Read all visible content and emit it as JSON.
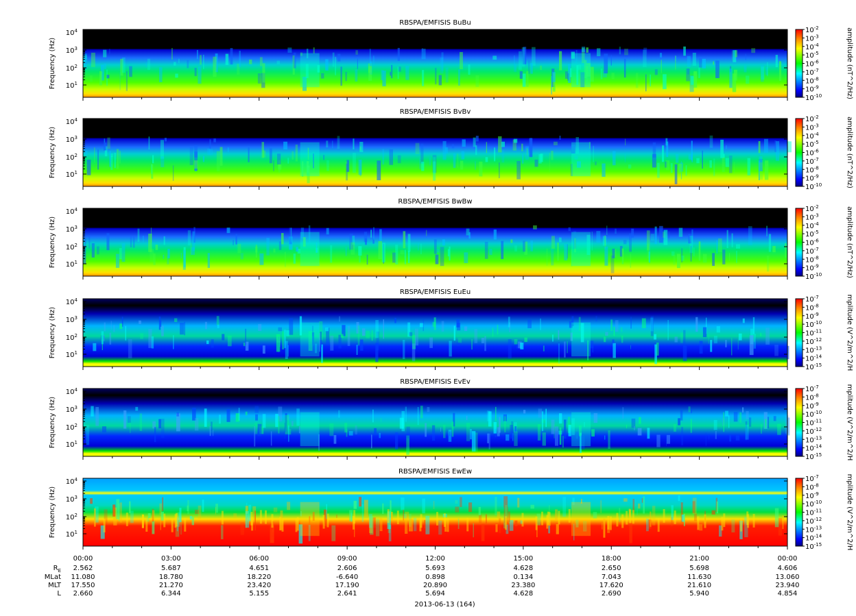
{
  "chart_data": [
    {
      "type": "heatmap",
      "title": "RBSPA/EMFISIS  BuBu",
      "ylabel": "Frequency (Hz)",
      "yscale": "log",
      "y_ticks": [
        "10",
        "10",
        "10",
        "10"
      ],
      "y_tick_exps": [
        "1",
        "2",
        "3",
        "4"
      ],
      "colorbar_label": "amplitude (nT^2/Hz)",
      "colorbar_range": [
        -10,
        -2
      ],
      "colorbar_ticks": [
        "10",
        "10",
        "10",
        "10",
        "10",
        "10",
        "10",
        "10",
        "10"
      ],
      "colorbar_tick_exps": [
        "-2",
        "-3",
        "-4",
        "-5",
        "-6",
        "-7",
        "-8",
        "-9",
        "-10"
      ],
      "variant": "B"
    },
    {
      "type": "heatmap",
      "title": "RBSPA/EMFISIS  BvBv",
      "ylabel": "Frequency (Hz)",
      "yscale": "log",
      "y_ticks": [
        "10",
        "10",
        "10",
        "10"
      ],
      "y_tick_exps": [
        "1",
        "2",
        "3",
        "4"
      ],
      "colorbar_label": "amplitude (nT^2/Hz)",
      "colorbar_range": [
        -10,
        -2
      ],
      "colorbar_ticks": [
        "10",
        "10",
        "10",
        "10",
        "10",
        "10",
        "10",
        "10",
        "10"
      ],
      "colorbar_tick_exps": [
        "-2",
        "-3",
        "-4",
        "-5",
        "-6",
        "-7",
        "-8",
        "-9",
        "-10"
      ],
      "variant": "B"
    },
    {
      "type": "heatmap",
      "title": "RBSPA/EMFISIS  BwBw",
      "ylabel": "Frequency (Hz)",
      "yscale": "log",
      "y_ticks": [
        "10",
        "10",
        "10",
        "10"
      ],
      "y_tick_exps": [
        "1",
        "2",
        "3",
        "4"
      ],
      "colorbar_label": "amplitude (nT^2/Hz)",
      "colorbar_range": [
        -10,
        -2
      ],
      "colorbar_ticks": [
        "10",
        "10",
        "10",
        "10",
        "10",
        "10",
        "10",
        "10",
        "10"
      ],
      "colorbar_tick_exps": [
        "-2",
        "-3",
        "-4",
        "-5",
        "-6",
        "-7",
        "-8",
        "-9",
        "-10"
      ],
      "variant": "B"
    },
    {
      "type": "heatmap",
      "title": "RBSPA/EMFISIS  EuEu",
      "ylabel": "Frequency (Hz)",
      "yscale": "log",
      "y_ticks": [
        "10",
        "10",
        "10",
        "10"
      ],
      "y_tick_exps": [
        "1",
        "2",
        "3",
        "4"
      ],
      "colorbar_label": "mplitude (V^2/m^2/H",
      "colorbar_range": [
        -15,
        -7
      ],
      "colorbar_ticks": [
        "10",
        "10",
        "10",
        "10",
        "10",
        "10",
        "10",
        "10",
        "10"
      ],
      "colorbar_tick_exps": [
        "-7",
        "-8",
        "-9",
        "-10",
        "-11",
        "-12",
        "-13",
        "-14",
        "-15"
      ],
      "variant": "E"
    },
    {
      "type": "heatmap",
      "title": "RBSPA/EMFISIS  EvEv",
      "ylabel": "Frequency (Hz)",
      "yscale": "log",
      "y_ticks": [
        "10",
        "10",
        "10",
        "10"
      ],
      "y_tick_exps": [
        "1",
        "2",
        "3",
        "4"
      ],
      "colorbar_label": "mplitude (V^2/m^2/H",
      "colorbar_range": [
        -15,
        -7
      ],
      "colorbar_ticks": [
        "10",
        "10",
        "10",
        "10",
        "10",
        "10",
        "10",
        "10",
        "10"
      ],
      "colorbar_tick_exps": [
        "-7",
        "-8",
        "-9",
        "-10",
        "-11",
        "-12",
        "-13",
        "-14",
        "-15"
      ],
      "variant": "E"
    },
    {
      "type": "heatmap",
      "title": "RBSPA/EMFISIS  EwEw",
      "ylabel": "Frequency (Hz)",
      "yscale": "log",
      "y_ticks": [
        "10",
        "10",
        "10",
        "10"
      ],
      "y_tick_exps": [
        "1",
        "2",
        "3",
        "4"
      ],
      "colorbar_label": "mplitude (V^2/m^2/H",
      "colorbar_range": [
        -15,
        -7
      ],
      "colorbar_ticks": [
        "10",
        "10",
        "10",
        "10",
        "10",
        "10",
        "10",
        "10",
        "10"
      ],
      "colorbar_tick_exps": [
        "-7",
        "-8",
        "-9",
        "-10",
        "-11",
        "-12",
        "-13",
        "-14",
        "-15"
      ],
      "variant": "W"
    }
  ],
  "x_axis": {
    "times": [
      "00:00",
      "03:00",
      "06:00",
      "09:00",
      "12:00",
      "15:00",
      "18:00",
      "21:00",
      "00:00"
    ],
    "date_label": "2013-06-13 (164)",
    "ephemeris": [
      {
        "label": "R",
        "sub": "E",
        "values": [
          "2.562",
          "5.687",
          "4.651",
          "2.606",
          "5.693",
          "4.628",
          "2.650",
          "5.698",
          "4.606"
        ]
      },
      {
        "label": "MLat",
        "sub": "",
        "values": [
          "11.080",
          "18.780",
          "18.220",
          "-6.640",
          "0.898",
          "0.134",
          "7.043",
          "11.630",
          "13.060"
        ]
      },
      {
        "label": "MLT",
        "sub": "",
        "values": [
          "17.550",
          "21.270",
          "23.420",
          "17.190",
          "20.890",
          "23.380",
          "17.620",
          "21.610",
          "23.940"
        ]
      },
      {
        "label": "L",
        "sub": "",
        "values": [
          "2.660",
          "6.344",
          "5.155",
          "2.641",
          "5.694",
          "4.628",
          "2.690",
          "5.940",
          "4.854"
        ]
      }
    ]
  },
  "colors": {
    "colormap": [
      "#000080",
      "#0000ff",
      "#00ffff",
      "#00ff00",
      "#ffff00",
      "#ff8000",
      "#ff0000"
    ],
    "no_data": "#000000"
  }
}
